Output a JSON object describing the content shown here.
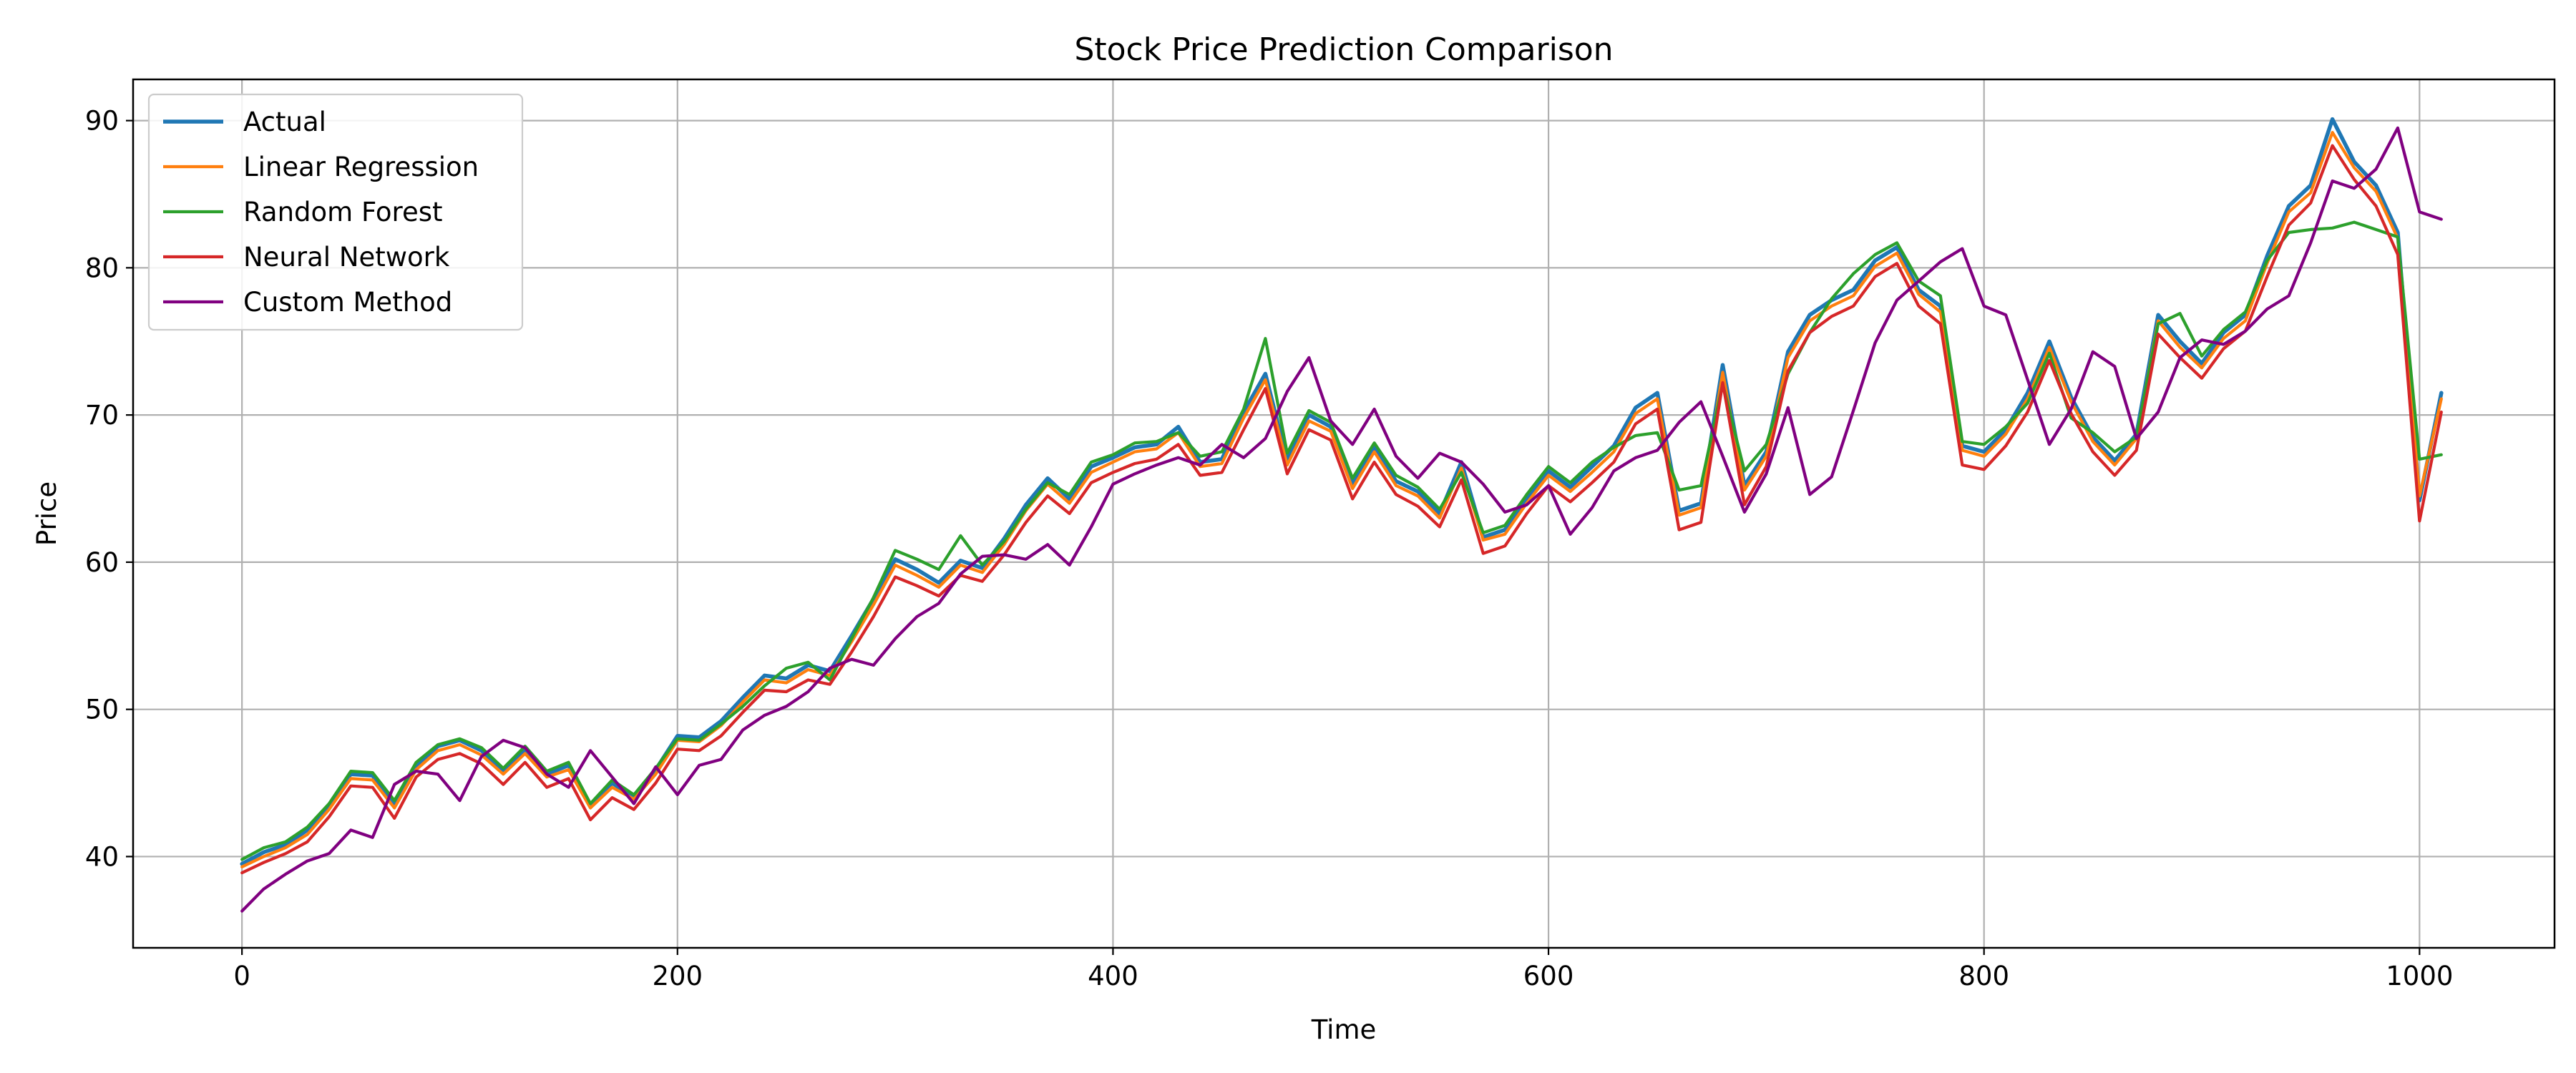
{
  "chart_data": {
    "type": "line",
    "title": "Stock Price Prediction Comparison",
    "xlabel": "Time",
    "ylabel": "Price",
    "xlim": [
      -50,
      1062
    ],
    "ylim": [
      33.8,
      92.8
    ],
    "xticks": [
      0,
      200,
      400,
      600,
      800,
      1000
    ],
    "yticks": [
      40,
      50,
      60,
      70,
      80,
      90
    ],
    "grid": true,
    "legend_position": "top-left",
    "series": [
      {
        "name": "Actual",
        "color": "#1f77b4",
        "x": [
          0,
          10,
          20,
          30,
          40,
          50,
          60,
          70,
          80,
          90,
          100,
          110,
          120,
          130,
          140,
          150,
          160,
          170,
          180,
          190,
          200,
          210,
          220,
          230,
          240,
          250,
          260,
          270,
          280,
          290,
          300,
          310,
          320,
          330,
          340,
          350,
          360,
          370,
          380,
          390,
          400,
          410,
          420,
          430,
          440,
          450,
          460,
          470,
          480,
          490,
          500,
          510,
          520,
          530,
          540,
          550,
          560,
          570,
          580,
          590,
          600,
          610,
          620,
          630,
          640,
          650,
          660,
          670,
          680,
          690,
          700,
          710,
          720,
          730,
          740,
          750,
          760,
          770,
          780,
          790,
          800,
          810,
          820,
          830,
          840,
          850,
          860,
          870,
          880,
          890,
          900,
          910,
          920,
          930,
          940,
          950,
          960,
          970,
          980,
          990,
          1000,
          1010
        ],
        "values": [
          39.5,
          40.3,
          40.8,
          41.8,
          43.5,
          45.6,
          45.5,
          43.5,
          46.2,
          47.5,
          47.9,
          47.2,
          45.8,
          47.3,
          45.6,
          46.2,
          43.4,
          45.0,
          44.0,
          45.9,
          48.2,
          48.1,
          49.2,
          50.8,
          52.3,
          52.1,
          53.0,
          52.6,
          55.0,
          57.5,
          60.2,
          59.5,
          58.6,
          60.1,
          59.6,
          61.6,
          63.9,
          65.7,
          64.3,
          66.5,
          67.1,
          67.8,
          68.0,
          69.2,
          66.8,
          67.0,
          70.2,
          72.8,
          66.9,
          70.0,
          69.2,
          65.3,
          67.8,
          65.5,
          64.8,
          63.3,
          66.8,
          61.7,
          62.2,
          64.3,
          66.2,
          65.1,
          66.5,
          67.9,
          70.5,
          71.5,
          63.5,
          64.0,
          73.4,
          65.2,
          67.5,
          74.3,
          76.8,
          77.8,
          78.5,
          80.5,
          81.4,
          78.5,
          77.4,
          67.9,
          67.5,
          69.0,
          71.5,
          75.0,
          71.2,
          68.5,
          66.9,
          68.7,
          76.8,
          75.0,
          73.5,
          75.6,
          76.8,
          80.8,
          84.2,
          85.6,
          90.1,
          87.2,
          85.6,
          82.4,
          64.2,
          71.5
        ]
      },
      {
        "name": "Linear Regression",
        "color": "#ff7f0e",
        "x": [
          0,
          10,
          20,
          30,
          40,
          50,
          60,
          70,
          80,
          90,
          100,
          110,
          120,
          130,
          140,
          150,
          160,
          170,
          180,
          190,
          200,
          210,
          220,
          230,
          240,
          250,
          260,
          270,
          280,
          290,
          300,
          310,
          320,
          330,
          340,
          350,
          360,
          370,
          380,
          390,
          400,
          410,
          420,
          430,
          440,
          450,
          460,
          470,
          480,
          490,
          500,
          510,
          520,
          530,
          540,
          550,
          560,
          570,
          580,
          590,
          600,
          610,
          620,
          630,
          640,
          650,
          660,
          670,
          680,
          690,
          700,
          710,
          720,
          730,
          740,
          750,
          760,
          770,
          780,
          790,
          800,
          810,
          820,
          830,
          840,
          850,
          860,
          870,
          880,
          890,
          900,
          910,
          920,
          930,
          940,
          950,
          960,
          970,
          980,
          990,
          1000,
          1010
        ],
        "values": [
          39.3,
          40.0,
          40.6,
          41.5,
          43.2,
          45.3,
          45.2,
          43.3,
          45.9,
          47.2,
          47.6,
          46.9,
          45.6,
          47.0,
          45.4,
          45.9,
          43.3,
          44.7,
          43.9,
          45.6,
          47.9,
          47.8,
          48.9,
          50.5,
          52.0,
          51.8,
          52.7,
          52.3,
          54.6,
          57.1,
          59.8,
          59.1,
          58.3,
          59.8,
          59.3,
          61.2,
          63.5,
          65.3,
          64.0,
          66.1,
          66.8,
          67.5,
          67.7,
          68.8,
          66.5,
          66.7,
          69.8,
          72.4,
          66.6,
          69.6,
          68.9,
          65.0,
          67.5,
          65.2,
          64.5,
          63.0,
          66.4,
          61.5,
          61.9,
          64.0,
          65.9,
          64.8,
          66.1,
          67.5,
          70.1,
          71.1,
          63.2,
          63.7,
          72.9,
          64.9,
          67.2,
          73.9,
          76.4,
          77.4,
          78.1,
          80.1,
          81.0,
          78.2,
          77.0,
          67.6,
          67.2,
          68.7,
          71.1,
          74.6,
          70.9,
          68.2,
          66.6,
          68.4,
          76.4,
          74.6,
          73.2,
          75.2,
          76.4,
          80.3,
          83.8,
          85.1,
          89.2,
          86.8,
          85.2,
          82.0,
          64.5,
          71.1
        ]
      },
      {
        "name": "Random Forest",
        "color": "#2ca02c",
        "x": [
          0,
          10,
          20,
          30,
          40,
          50,
          60,
          70,
          80,
          90,
          100,
          110,
          120,
          130,
          140,
          150,
          160,
          170,
          180,
          190,
          200,
          210,
          220,
          230,
          240,
          250,
          260,
          270,
          280,
          290,
          300,
          310,
          320,
          330,
          340,
          350,
          360,
          370,
          380,
          390,
          400,
          410,
          420,
          430,
          440,
          450,
          460,
          470,
          480,
          490,
          500,
          510,
          520,
          530,
          540,
          550,
          560,
          570,
          580,
          590,
          600,
          610,
          620,
          630,
          640,
          650,
          660,
          670,
          680,
          690,
          700,
          710,
          720,
          730,
          740,
          750,
          760,
          770,
          780,
          790,
          800,
          810,
          820,
          830,
          840,
          850,
          860,
          870,
          880,
          890,
          900,
          910,
          920,
          930,
          940,
          950,
          960,
          970,
          980,
          990,
          1000,
          1010
        ],
        "values": [
          39.8,
          40.6,
          41.0,
          42.0,
          43.6,
          45.8,
          45.7,
          43.8,
          46.4,
          47.6,
          48.0,
          47.4,
          46.0,
          47.5,
          45.8,
          46.4,
          43.6,
          45.2,
          44.2,
          46.0,
          48.0,
          47.9,
          49.0,
          50.2,
          51.6,
          52.8,
          53.2,
          52.0,
          54.8,
          57.6,
          60.8,
          60.2,
          59.5,
          61.8,
          59.8,
          61.4,
          63.6,
          65.4,
          64.6,
          66.8,
          67.3,
          68.1,
          68.2,
          68.8,
          67.2,
          67.5,
          70.4,
          75.2,
          67.4,
          70.3,
          69.5,
          65.7,
          68.1,
          65.9,
          65.1,
          63.6,
          66.1,
          62.0,
          62.5,
          64.6,
          66.5,
          65.4,
          66.8,
          67.8,
          68.6,
          68.8,
          64.9,
          65.2,
          72.1,
          66.2,
          68.0,
          72.8,
          75.6,
          77.9,
          79.6,
          80.9,
          81.7,
          79.1,
          78.1,
          68.2,
          68.0,
          69.2,
          70.8,
          74.2,
          69.8,
          68.8,
          67.5,
          68.5,
          76.2,
          76.9,
          74.0,
          75.8,
          77.0,
          80.5,
          82.4,
          82.6,
          82.7,
          83.1,
          82.6,
          82.1,
          67.0,
          67.3
        ]
      },
      {
        "name": "Neural Network",
        "color": "#d62728",
        "x": [
          0,
          10,
          20,
          30,
          40,
          50,
          60,
          70,
          80,
          90,
          100,
          110,
          120,
          130,
          140,
          150,
          160,
          170,
          180,
          190,
          200,
          210,
          220,
          230,
          240,
          250,
          260,
          270,
          280,
          290,
          300,
          310,
          320,
          330,
          340,
          350,
          360,
          370,
          380,
          390,
          400,
          410,
          420,
          430,
          440,
          450,
          460,
          470,
          480,
          490,
          500,
          510,
          520,
          530,
          540,
          550,
          560,
          570,
          580,
          590,
          600,
          610,
          620,
          630,
          640,
          650,
          660,
          670,
          680,
          690,
          700,
          710,
          720,
          730,
          740,
          750,
          760,
          770,
          780,
          790,
          800,
          810,
          820,
          830,
          840,
          850,
          860,
          870,
          880,
          890,
          900,
          910,
          920,
          930,
          940,
          950,
          960,
          970,
          980,
          990,
          1000,
          1010
        ],
        "values": [
          38.9,
          39.6,
          40.2,
          41.0,
          42.7,
          44.8,
          44.7,
          42.6,
          45.4,
          46.6,
          47.0,
          46.3,
          44.9,
          46.4,
          44.7,
          45.3,
          42.5,
          44.0,
          43.2,
          45.0,
          47.3,
          47.2,
          48.2,
          49.8,
          51.3,
          51.2,
          52.0,
          51.7,
          53.9,
          56.3,
          59.0,
          58.4,
          57.7,
          59.1,
          58.7,
          60.5,
          62.7,
          64.5,
          63.3,
          65.4,
          66.1,
          66.7,
          67.0,
          68.0,
          65.9,
          66.1,
          69.0,
          71.8,
          66.0,
          69.0,
          68.3,
          64.3,
          66.8,
          64.6,
          63.8,
          62.4,
          65.6,
          60.6,
          61.1,
          63.3,
          65.2,
          64.1,
          65.4,
          66.8,
          69.4,
          70.4,
          62.2,
          62.7,
          72.2,
          63.9,
          66.5,
          73.0,
          75.6,
          76.7,
          77.4,
          79.4,
          80.3,
          77.4,
          76.2,
          66.6,
          66.3,
          67.9,
          70.2,
          73.7,
          70.1,
          67.5,
          65.9,
          67.6,
          75.5,
          73.9,
          72.5,
          74.5,
          75.7,
          79.4,
          82.9,
          84.4,
          88.3,
          86.0,
          84.2,
          80.9,
          62.8,
          70.2
        ]
      },
      {
        "name": "Custom Method",
        "color": "#800080",
        "x": [
          0,
          10,
          20,
          30,
          40,
          50,
          60,
          70,
          80,
          90,
          100,
          110,
          120,
          130,
          140,
          150,
          160,
          170,
          180,
          190,
          200,
          210,
          220,
          230,
          240,
          250,
          260,
          270,
          280,
          290,
          300,
          310,
          320,
          330,
          340,
          350,
          360,
          370,
          380,
          390,
          400,
          410,
          420,
          430,
          440,
          450,
          460,
          470,
          480,
          490,
          500,
          510,
          520,
          530,
          540,
          550,
          560,
          570,
          580,
          590,
          600,
          610,
          620,
          630,
          640,
          650,
          660,
          670,
          680,
          690,
          700,
          710,
          720,
          730,
          740,
          750,
          760,
          770,
          780,
          790,
          800,
          810,
          820,
          830,
          840,
          850,
          860,
          870,
          880,
          890,
          900,
          910,
          920,
          930,
          940,
          950,
          960,
          970,
          980,
          990,
          1000,
          1010
        ],
        "values": [
          36.3,
          37.8,
          38.8,
          39.7,
          40.2,
          41.8,
          41.3,
          44.9,
          45.8,
          45.6,
          43.8,
          46.8,
          47.9,
          47.4,
          45.6,
          44.7,
          47.2,
          45.4,
          43.6,
          46.1,
          44.2,
          46.2,
          46.6,
          48.6,
          49.6,
          50.2,
          51.2,
          52.8,
          53.4,
          53.0,
          54.8,
          56.3,
          57.2,
          59.2,
          60.4,
          60.5,
          60.2,
          61.2,
          59.8,
          62.4,
          65.3,
          66.0,
          66.6,
          67.1,
          66.6,
          68.0,
          67.1,
          68.4,
          71.6,
          73.9,
          69.6,
          68.0,
          70.4,
          67.2,
          65.7,
          67.4,
          66.8,
          65.3,
          63.4,
          63.9,
          65.2,
          61.9,
          63.7,
          66.2,
          67.1,
          67.6,
          69.5,
          70.9,
          67.2,
          63.4,
          66.0,
          70.5,
          64.6,
          65.8,
          70.3,
          74.9,
          77.8,
          79.1,
          80.4,
          81.3,
          77.4,
          76.8,
          72.4,
          68.0,
          70.4,
          74.3,
          73.3,
          68.4,
          70.2,
          73.9,
          75.1,
          74.8,
          75.7,
          77.2,
          78.1,
          81.7,
          85.9,
          85.4,
          86.7,
          89.5,
          83.8,
          83.3
        ]
      }
    ]
  }
}
